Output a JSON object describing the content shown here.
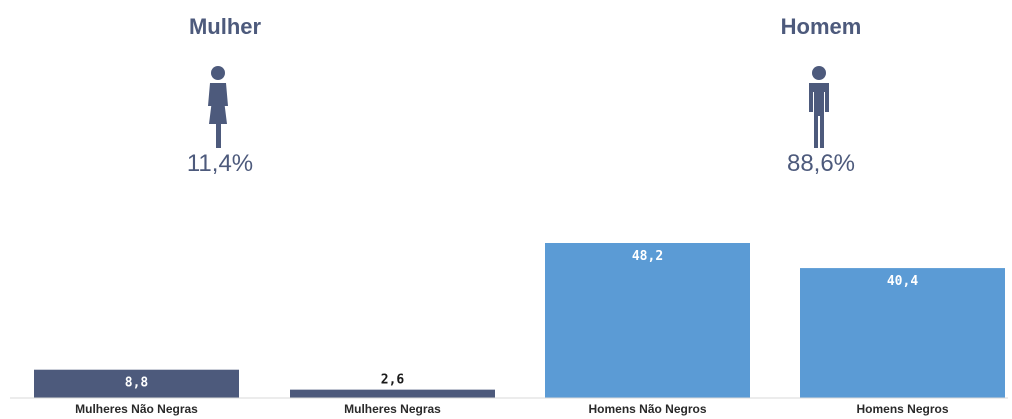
{
  "groups": {
    "women": {
      "title": "Mulher",
      "percent": "11,4%",
      "icon": "female-person-icon",
      "color": "#4d5a7c"
    },
    "men": {
      "title": "Homem",
      "percent": "88,6%",
      "icon": "male-person-icon",
      "color": "#4d5a7c"
    }
  },
  "chart_data": {
    "type": "bar",
    "categories": [
      "Mulheres Não Negras",
      "Mulheres Negras",
      "Homens Não Negros",
      "Homens Negros"
    ],
    "values": [
      8.8,
      2.6,
      48.2,
      40.4
    ],
    "value_labels": [
      "8,8",
      "2,6",
      "48,2",
      "40,4"
    ],
    "bar_colors": [
      "#4d5a7c",
      "#4d5a7c",
      "#5b9bd5",
      "#5b9bd5"
    ],
    "value_label_colors": [
      "#ffffff",
      "#1a1a1a",
      "#ffffff",
      "#ffffff"
    ],
    "ylim": [
      0,
      48.2
    ],
    "grid": false,
    "legend": "none",
    "title": "",
    "xlabel": "",
    "ylabel": ""
  }
}
